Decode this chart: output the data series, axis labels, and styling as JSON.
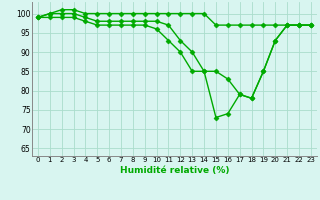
{
  "x": [
    0,
    1,
    2,
    3,
    4,
    5,
    6,
    7,
    8,
    9,
    10,
    11,
    12,
    13,
    14,
    15,
    16,
    17,
    18,
    19,
    20,
    21,
    22,
    23
  ],
  "line1": [
    99,
    100,
    101,
    101,
    100,
    100,
    100,
    100,
    100,
    100,
    100,
    100,
    100,
    100,
    100,
    97,
    97,
    97,
    97,
    97,
    97,
    97,
    97,
    97
  ],
  "line2": [
    99,
    100,
    100,
    100,
    99,
    98,
    98,
    98,
    98,
    98,
    98,
    97,
    93,
    90,
    85,
    85,
    83,
    79,
    78,
    85,
    93,
    97,
    97,
    97
  ],
  "line3": [
    99,
    99,
    99,
    99,
    98,
    97,
    97,
    97,
    97,
    97,
    96,
    93,
    90,
    85,
    85,
    73,
    74,
    79,
    78,
    85,
    93,
    97,
    97,
    97
  ],
  "line_color": "#00aa00",
  "bg_color": "#d8f5f0",
  "grid_color": "#aaddcc",
  "xlabel": "Humidité relative (%)",
  "xlim": [
    -0.5,
    23.5
  ],
  "ylim": [
    63,
    103
  ],
  "yticks": [
    65,
    70,
    75,
    80,
    85,
    90,
    95,
    100
  ],
  "xtick_labels": [
    "0",
    "1",
    "2",
    "3",
    "4",
    "5",
    "6",
    "7",
    "8",
    "9",
    "10",
    "11",
    "12",
    "13",
    "14",
    "15",
    "16",
    "17",
    "18",
    "19",
    "20",
    "21",
    "22",
    "23"
  ],
  "marker": "D",
  "markersize": 2.5,
  "linewidth": 1.0
}
